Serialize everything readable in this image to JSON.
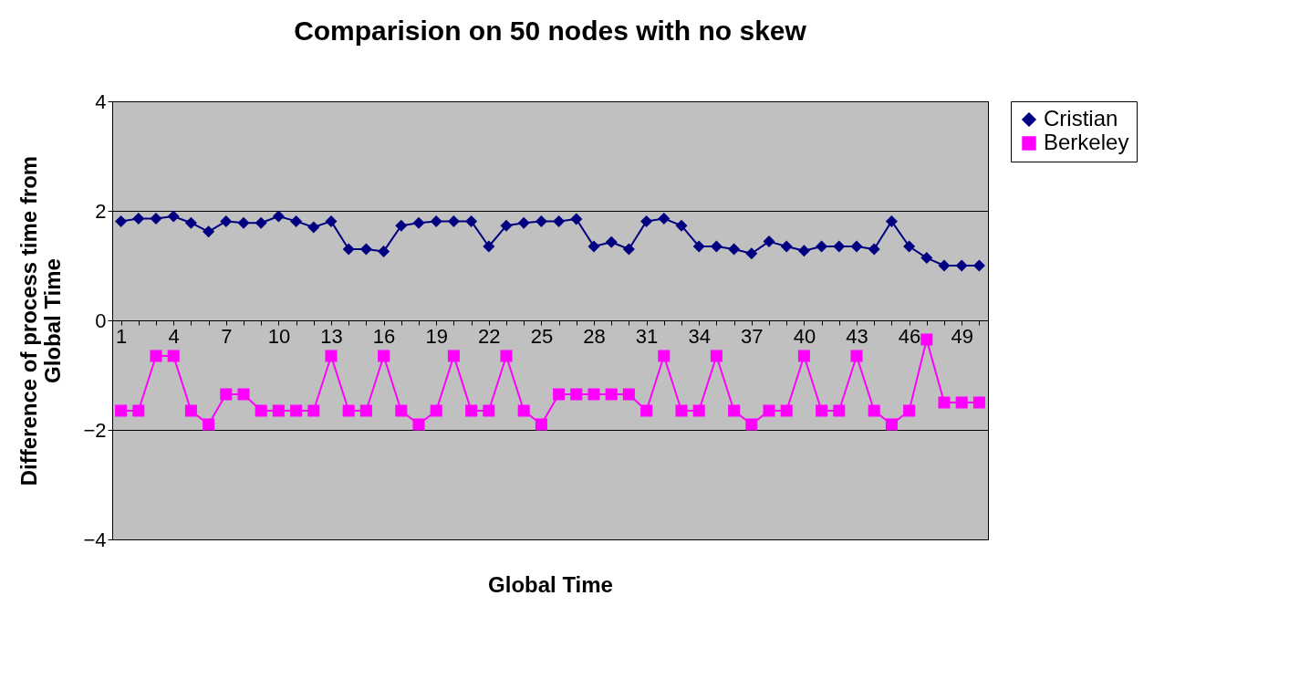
{
  "chart_data": {
    "type": "line",
    "title": "Comparision on 50 nodes with no skew",
    "xlabel": "Global Time",
    "ylabel": "Difference of process time from Global Time",
    "categories": [
      "1",
      null,
      null,
      "4",
      null,
      null,
      "7",
      null,
      null,
      "10",
      null,
      null,
      "13",
      null,
      null,
      "16",
      null,
      null,
      "19",
      null,
      null,
      "22",
      null,
      null,
      "25",
      null,
      null,
      "28",
      null,
      null,
      "31",
      null,
      null,
      "34",
      null,
      null,
      "37",
      null,
      null,
      "40",
      null,
      null,
      "43",
      null,
      null,
      "46",
      null,
      null,
      "49",
      null
    ],
    "series": [
      {
        "name": "Cristian",
        "color": "#000080",
        "marker": "diamond",
        "values": [
          1.81,
          1.86,
          1.86,
          1.9,
          1.78,
          1.62,
          1.81,
          1.78,
          1.78,
          1.9,
          1.81,
          1.7,
          1.81,
          1.3,
          1.3,
          1.26,
          1.73,
          1.78,
          1.81,
          1.81,
          1.81,
          1.35,
          1.73,
          1.78,
          1.81,
          1.81,
          1.85,
          1.35,
          1.43,
          1.3,
          1.81,
          1.86,
          1.73,
          1.35,
          1.35,
          1.3,
          1.22,
          1.44,
          1.35,
          1.27,
          1.35,
          1.35,
          1.35,
          1.3,
          1.81,
          1.35,
          1.14,
          1.0,
          1.0,
          1.0
        ]
      },
      {
        "name": "Berkeley",
        "color": "#ff00ff",
        "marker": "square",
        "values": [
          -1.65,
          -1.65,
          -0.65,
          -0.65,
          -1.65,
          -1.9,
          -1.35,
          -1.35,
          -1.65,
          -1.65,
          -1.65,
          -1.65,
          -0.65,
          -1.65,
          -1.65,
          -0.65,
          -1.65,
          -1.9,
          -1.65,
          -0.65,
          -1.65,
          -1.65,
          -0.65,
          -1.65,
          -1.9,
          -1.35,
          -1.35,
          -1.35,
          -1.35,
          -1.35,
          -1.65,
          -0.65,
          -1.65,
          -1.65,
          -0.65,
          -1.65,
          -1.9,
          -1.65,
          -1.65,
          -0.65,
          -1.65,
          -1.65,
          -0.65,
          -1.65,
          -1.9,
          -1.65,
          -0.35,
          -1.5,
          -1.5,
          -1.5
        ]
      }
    ],
    "ylim": [
      -4,
      4
    ],
    "yticks": [
      -4,
      -2,
      0,
      2,
      4
    ],
    "grid": "y",
    "legend": "right"
  }
}
